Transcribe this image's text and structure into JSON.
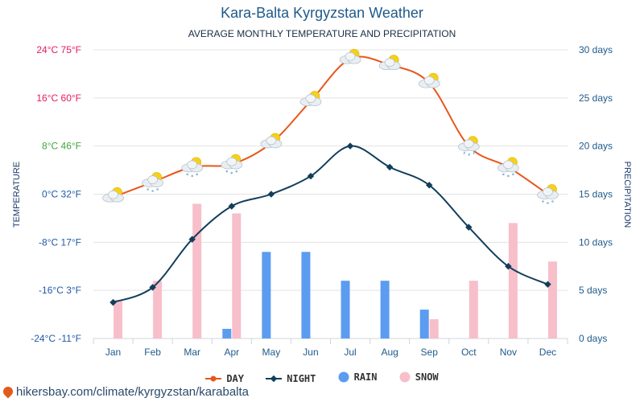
{
  "header": {
    "title": "Kara-Balta Kyrgyzstan Weather",
    "subtitle": "AVERAGE MONTHLY TEMPERATURE AND PRECIPITATION"
  },
  "footer": {
    "text": "hikersbay.com/climate/kyrgyzstan/karabalta"
  },
  "legend": {
    "day": "DAY",
    "night": "NIGHT",
    "rain": "RAIN",
    "snow": "SNOW"
  },
  "colors": {
    "day": "#e8561c",
    "night": "#123e5a",
    "rain": "#5b9cf0",
    "snow": "#f7bfca",
    "grid": "#e3e3e3"
  },
  "chart_data": {
    "type": "line",
    "categories": [
      "Jan",
      "Feb",
      "Mar",
      "Apr",
      "May",
      "Jun",
      "Jul",
      "Aug",
      "Sep",
      "Oct",
      "Nov",
      "Dec"
    ],
    "series": [
      {
        "name": "DAY",
        "unit": "°C",
        "values": [
          -0.5,
          2,
          4.5,
          5,
          8.5,
          15.5,
          22.5,
          21.5,
          18.5,
          8,
          4.5,
          0
        ]
      },
      {
        "name": "NIGHT",
        "unit": "°C",
        "values": [
          -18,
          -15.5,
          -7.5,
          -2,
          0,
          3,
          8,
          4.5,
          1.5,
          -5.5,
          -12,
          -15
        ]
      },
      {
        "name": "RAIN",
        "unit": "days",
        "axis": "right",
        "values": [
          0,
          0,
          0,
          1,
          9,
          9,
          6,
          6,
          3,
          0,
          0,
          0
        ]
      },
      {
        "name": "SNOW",
        "unit": "days",
        "axis": "right",
        "values": [
          4,
          6,
          14,
          13,
          0,
          0,
          0,
          0,
          2,
          6,
          12,
          8
        ]
      }
    ],
    "y_left": {
      "label": "TEMPERATURE",
      "range_c": [
        -24,
        24
      ],
      "ticks": [
        {
          "c": 24,
          "text": "24°C 75°F",
          "color": "#e8185a"
        },
        {
          "c": 16,
          "text": "16°C 60°F",
          "color": "#e8185a"
        },
        {
          "c": 8,
          "text": "8°C 46°F",
          "color": "#3fa63f"
        },
        {
          "c": 0,
          "text": "0°C 32°F",
          "color": "#1f5aa8"
        },
        {
          "c": -8,
          "text": "-8°C 17°F",
          "color": "#1f5aa8"
        },
        {
          "c": -16,
          "text": "-16°C 3°F",
          "color": "#1f5aa8"
        },
        {
          "c": -24,
          "text": "-24°C -11°F",
          "color": "#1f5aa8"
        }
      ]
    },
    "y_right": {
      "label": "PRECIPITATION",
      "range": [
        0,
        30
      ],
      "ticks": [
        {
          "v": 30,
          "text": "30 days"
        },
        {
          "v": 25,
          "text": "25 days"
        },
        {
          "v": 20,
          "text": "20 days"
        },
        {
          "v": 15,
          "text": "15 days"
        },
        {
          "v": 10,
          "text": "10 days"
        },
        {
          "v": 5,
          "text": "5 days"
        },
        {
          "v": 0,
          "text": "0 days"
        }
      ]
    },
    "icons": [
      "partly-cloudy-icon",
      "partly-cloudy-snow-icon",
      "partly-cloudy-snow-icon",
      "partly-cloudy-snow-icon",
      "partly-cloudy-icon",
      "partly-cloudy-icon",
      "partly-cloudy-icon",
      "partly-cloudy-icon",
      "partly-cloudy-icon",
      "partly-cloudy-rain-icon",
      "partly-cloudy-snow-icon",
      "partly-cloudy-snow-icon"
    ],
    "grid": true,
    "legend_position": "bottom"
  }
}
